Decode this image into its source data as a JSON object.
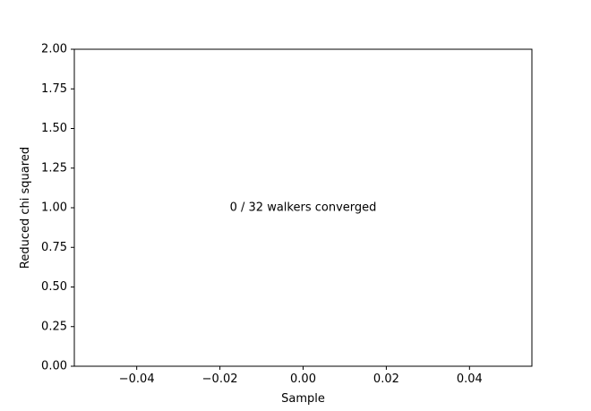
{
  "chart_data": {
    "type": "line",
    "title": "",
    "xlabel": "Sample",
    "ylabel": "Reduced chi squared",
    "xlim": [
      -0.055,
      0.055
    ],
    "ylim": [
      0,
      2
    ],
    "xticks": [
      -0.04,
      -0.02,
      0.0,
      0.02,
      0.04
    ],
    "xtick_labels": [
      "−0.04",
      "−0.02",
      "0.00",
      "0.02",
      "0.04"
    ],
    "yticks": [
      0.0,
      0.25,
      0.5,
      0.75,
      1.0,
      1.25,
      1.5,
      1.75,
      2.0
    ],
    "ytick_labels": [
      "0.00",
      "0.25",
      "0.50",
      "0.75",
      "1.00",
      "1.25",
      "1.50",
      "1.75",
      "2.00"
    ],
    "grid": false,
    "series": [],
    "annotation": {
      "text": "0 / 32 walkers converged",
      "x": 0.0,
      "y": 1.0
    }
  }
}
